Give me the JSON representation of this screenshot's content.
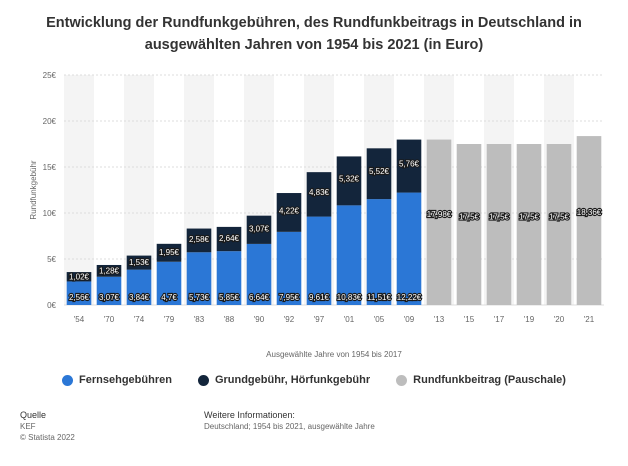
{
  "title": "Entwicklung der Rundfunkgebühren, des Rundfunkbeitrags in Deutschland in ausgewählten Jahren von 1954 bis 2021 (in Euro)",
  "chart_data": {
    "type": "bar",
    "stacked": true,
    "title": "Entwicklung der Rundfunkgebühren, des Rundfunkbeitrags in Deutschland in ausgewählten Jahren von 1954 bis 2021 (in Euro)",
    "xlabel": "Ausgewählte Jahre von 1954 bis 2017",
    "ylabel": "Rundfunkgebühr",
    "ylim": [
      0,
      25
    ],
    "yticks": [
      "0€",
      "5€",
      "10€",
      "15€",
      "20€",
      "25€"
    ],
    "categories": [
      "'54",
      "'70",
      "'74",
      "'79",
      "'83",
      "'88",
      "'90",
      "'92",
      "'97",
      "'01",
      "'05",
      "'09",
      "'13",
      "'15",
      "'17",
      "'19",
      "'20",
      "'21"
    ],
    "series": [
      {
        "name": "Fernsehgebühren",
        "color": "#2b77d6",
        "values": [
          2.56,
          3.07,
          3.84,
          4.7,
          5.73,
          5.85,
          6.64,
          7.95,
          9.61,
          10.83,
          11.51,
          12.22,
          null,
          null,
          null,
          null,
          null,
          null
        ],
        "labels": [
          "2,56€",
          "3,07€",
          "3,84€",
          "4,7€",
          "5,73€",
          "5,85€",
          "6,64€",
          "7,95€",
          "9,61€",
          "10,83€",
          "11,51€",
          "12,22€",
          "",
          "",
          "",
          "",
          "",
          ""
        ]
      },
      {
        "name": "Grundgebühr, Hörfunkgebühr",
        "color": "#13253b",
        "values": [
          1.02,
          1.28,
          1.53,
          1.95,
          2.58,
          2.64,
          3.07,
          4.22,
          4.83,
          5.32,
          5.52,
          5.76,
          null,
          null,
          null,
          null,
          null,
          null
        ],
        "labels": [
          "1,02€",
          "1,28€",
          "1,53€",
          "1,95€",
          "2,58€",
          "2,64€",
          "3,07€",
          "4,22€",
          "4,83€",
          "5,32€",
          "5,52€",
          "5,76€",
          "",
          "",
          "",
          "",
          "",
          ""
        ]
      },
      {
        "name": "Rundfunkbeitrag (Pauschale)",
        "color": "#bdbdbd",
        "values": [
          null,
          null,
          null,
          null,
          null,
          null,
          null,
          null,
          null,
          null,
          null,
          null,
          17.98,
          17.5,
          17.5,
          17.5,
          17.5,
          18.36
        ],
        "labels": [
          "",
          "",
          "",
          "",
          "",
          "",
          "",
          "",
          "",
          "",
          "",
          "",
          "17,98€",
          "17,5€",
          "17,5€",
          "17,5€",
          "17,5€",
          "18,36€"
        ]
      }
    ],
    "legend": "bottom",
    "grid": true
  },
  "footer": {
    "source_heading": "Quelle",
    "source_line1": "KEF",
    "source_line2": "© Statista 2022",
    "info_heading": "Weitere Informationen:",
    "info_line": "Deutschland; 1954 bis 2021, ausgewählte Jahre"
  }
}
